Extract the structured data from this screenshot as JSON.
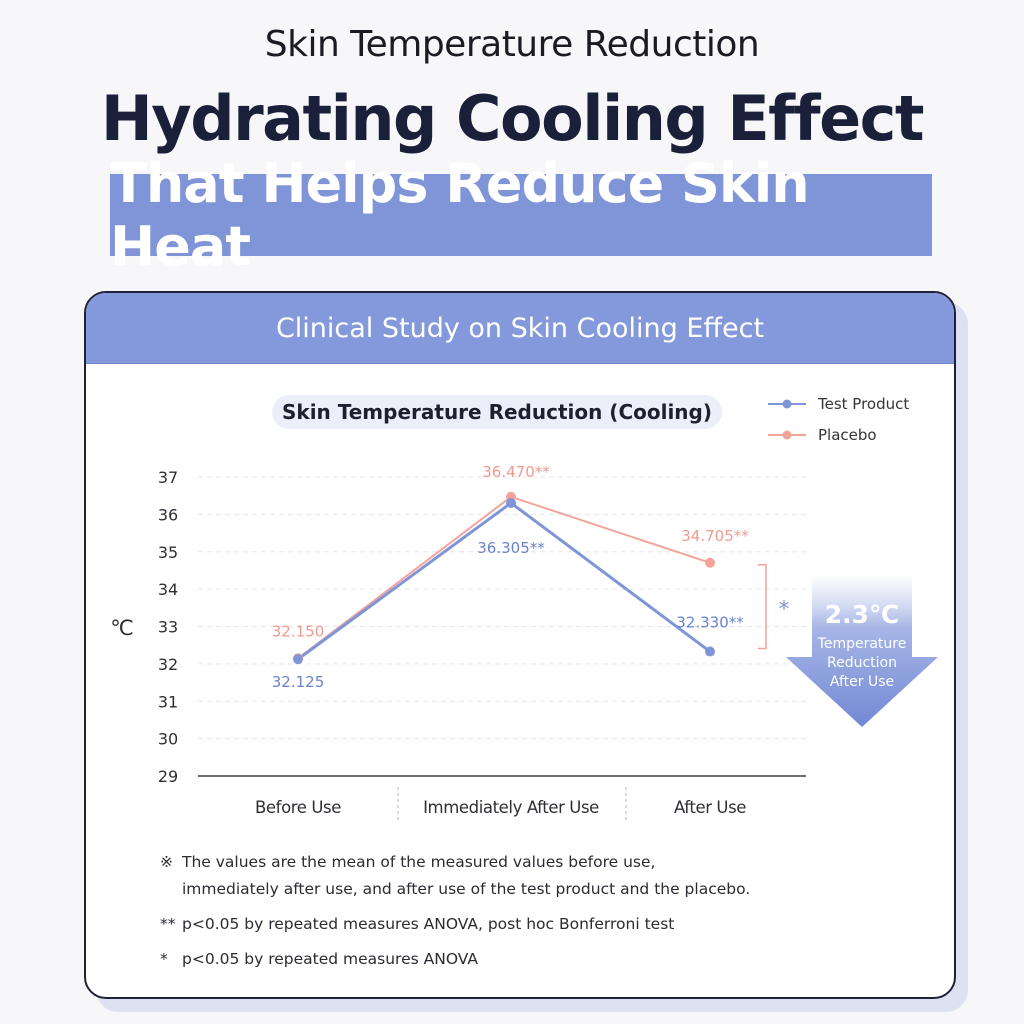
{
  "header": {
    "kicker": "Skin Temperature Reduction",
    "headline": "Hydrating Cooling Effect",
    "highlight": "That Helps Reduce Skin Heat"
  },
  "card": {
    "title": "Clinical Study on Skin Cooling Effect"
  },
  "chart_data": {
    "type": "line",
    "title": "Skin Temperature Reduction (Cooling)",
    "ylabel": "℃",
    "xlabel": "",
    "categories": [
      "Before Use",
      "Immediately After Use",
      "After Use"
    ],
    "ylim": [
      29,
      37
    ],
    "yticks": [
      29,
      30,
      31,
      32,
      33,
      34,
      35,
      36,
      37
    ],
    "grid": "horizontal dashed",
    "legend_position": "top-right",
    "series": [
      {
        "name": "Test Product",
        "color": "#7f95d8",
        "values": [
          32.125,
          36.305,
          32.33
        ],
        "labels": [
          "32.125",
          "36.305**",
          "32.330**"
        ]
      },
      {
        "name": "Placebo",
        "color": "#f2a49a",
        "values": [
          32.15,
          36.47,
          34.705
        ],
        "labels": [
          "32.150",
          "36.470**",
          "34.705**"
        ]
      }
    ],
    "significance_mark": "*",
    "callout": {
      "value": "2.3℃",
      "line1": "Temperature",
      "line2": "Reduction",
      "line3": "After Use"
    }
  },
  "footnotes": [
    {
      "mark": "※",
      "text": "The values are the mean of the measured values before use,"
    },
    {
      "mark": "",
      "text": "immediately after use, and after use of the test product and the placebo."
    },
    {
      "mark": "**",
      "text": "p<0.05 by repeated measures ANOVA, post hoc Bonferroni test"
    },
    {
      "mark": "*",
      "text": "p<0.05 by repeated measures ANOVA"
    }
  ]
}
